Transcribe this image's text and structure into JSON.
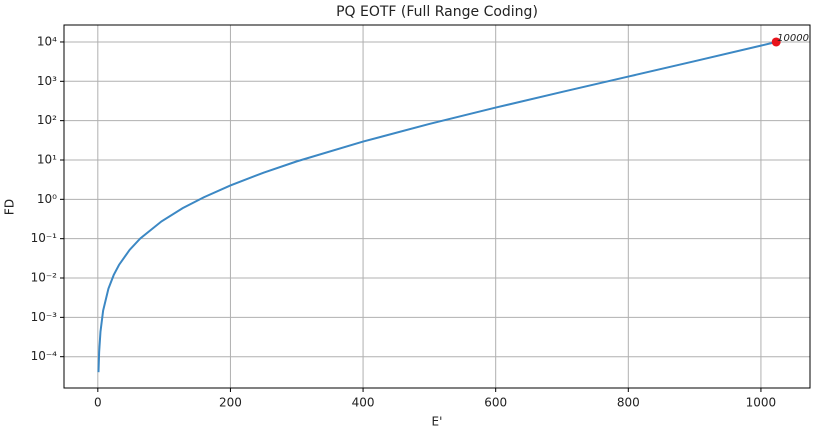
{
  "chart_data": {
    "type": "line",
    "title": "PQ EOTF (Full Range Coding)",
    "x_label": "E'",
    "y_label": "FD",
    "x": [
      1,
      2,
      4,
      8,
      16,
      24,
      32,
      48,
      64,
      96,
      128,
      160,
      200,
      250,
      300,
      400,
      500,
      600,
      700,
      800,
      900,
      1000,
      1023
    ],
    "series": [
      {
        "name": "PQ EOTF",
        "color": "#3c88c4",
        "values": [
          4.04e-05,
          0.000131,
          0.000432,
          0.00148,
          0.00537,
          0.01195,
          0.0216,
          0.052,
          0.101,
          0.275,
          0.596,
          1.13,
          2.26,
          4.76,
          9.22,
          29.4,
          82.6,
          215,
          537,
          1319,
          3242,
          8072,
          10000
        ]
      }
    ],
    "marker": {
      "x": 1023,
      "y": 10000,
      "color": "#e8131b"
    },
    "xlim": [
      -51,
      1074
    ],
    "xticks": [
      0,
      200,
      400,
      600,
      800,
      1000
    ],
    "ylim": [
      1.6e-05,
      27000
    ],
    "log_y": true,
    "yticks": [
      {
        "value": 0.0001,
        "label": "10⁻⁴"
      },
      {
        "value": 0.001,
        "label": "10⁻³"
      },
      {
        "value": 0.01,
        "label": "10⁻²"
      },
      {
        "value": 0.1,
        "label": "10⁻¹"
      },
      {
        "value": 1,
        "label": "10⁰"
      },
      {
        "value": 10,
        "label": "10¹"
      },
      {
        "value": 100,
        "label": "10²"
      },
      {
        "value": 1000,
        "label": "10³"
      },
      {
        "value": 10000,
        "label": "10⁴"
      }
    ],
    "grid": true
  }
}
